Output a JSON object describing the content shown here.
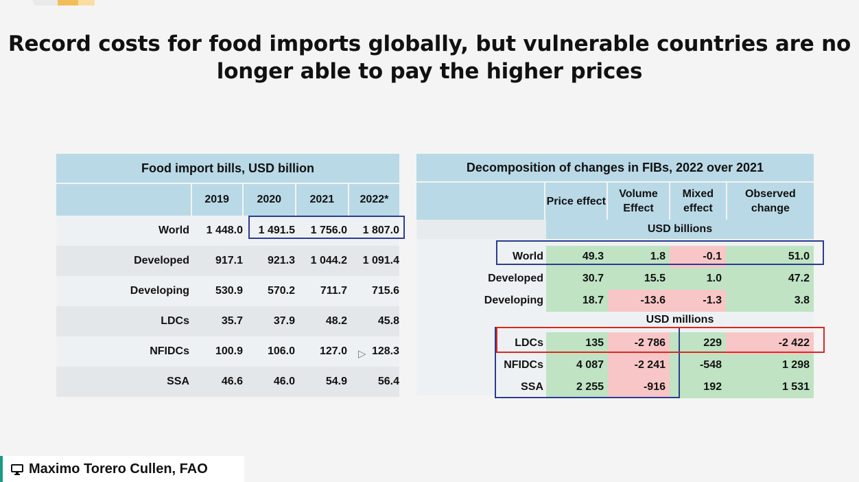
{
  "slide": {
    "title_line1": "Record costs for food imports globally, but vulnerable countries are no",
    "title_line2": "longer able to pay the higher prices"
  },
  "left_table": {
    "title": "Food import bills, USD billion",
    "years": [
      "2019",
      "2020",
      "2021",
      "2022*"
    ],
    "rows": [
      {
        "label": "World",
        "values": [
          "1 448.0",
          "1 491.5",
          "1 756.0",
          "1 807.0"
        ]
      },
      {
        "label": "Developed",
        "values": [
          "917.1",
          "921.3",
          "1 044.2",
          "1 091.4"
        ]
      },
      {
        "label": "Developing",
        "values": [
          "530.9",
          "570.2",
          "711.7",
          "715.6"
        ]
      },
      {
        "label": "LDCs",
        "values": [
          "35.7",
          "37.9",
          "48.2",
          "45.8"
        ]
      },
      {
        "label": "NFIDCs",
        "values": [
          "100.9",
          "106.0",
          "127.0",
          "128.3"
        ]
      },
      {
        "label": "SSA",
        "values": [
          "46.6",
          "46.0",
          "54.9",
          "56.4"
        ]
      }
    ]
  },
  "right_table": {
    "title": "Decomposition of changes in FIBs, 2022 over 2021",
    "columns": [
      "Price effect",
      "Volume Effect",
      "Mixed effect",
      "Observed change"
    ],
    "unit_billions": "USD billions",
    "unit_millions": "USD millions",
    "billion_rows": [
      {
        "label": "World",
        "values": [
          "49.3",
          "1.8",
          "-0.1",
          "51.0"
        ]
      },
      {
        "label": "Developed",
        "values": [
          "30.7",
          "15.5",
          "1.0",
          "47.2"
        ]
      },
      {
        "label": "Developing",
        "values": [
          "18.7",
          "-13.6",
          "-1.3",
          "3.8"
        ]
      }
    ],
    "million_rows": [
      {
        "label": "LDCs",
        "values": [
          "135",
          "-2 786",
          "229",
          "-2 422"
        ]
      },
      {
        "label": "NFIDCs",
        "values": [
          "4 087",
          "-2 241",
          "-548",
          "1 298"
        ]
      },
      {
        "label": "SSA",
        "values": [
          "2 255",
          "-916",
          "192",
          "1 531"
        ]
      }
    ],
    "colors": {
      "positive": "#bfe3c3",
      "negative": "#f8c6c6"
    }
  },
  "footer": {
    "presenter": "Maximo Torero Cullen, FAO",
    "icon": "monitor-icon"
  }
}
